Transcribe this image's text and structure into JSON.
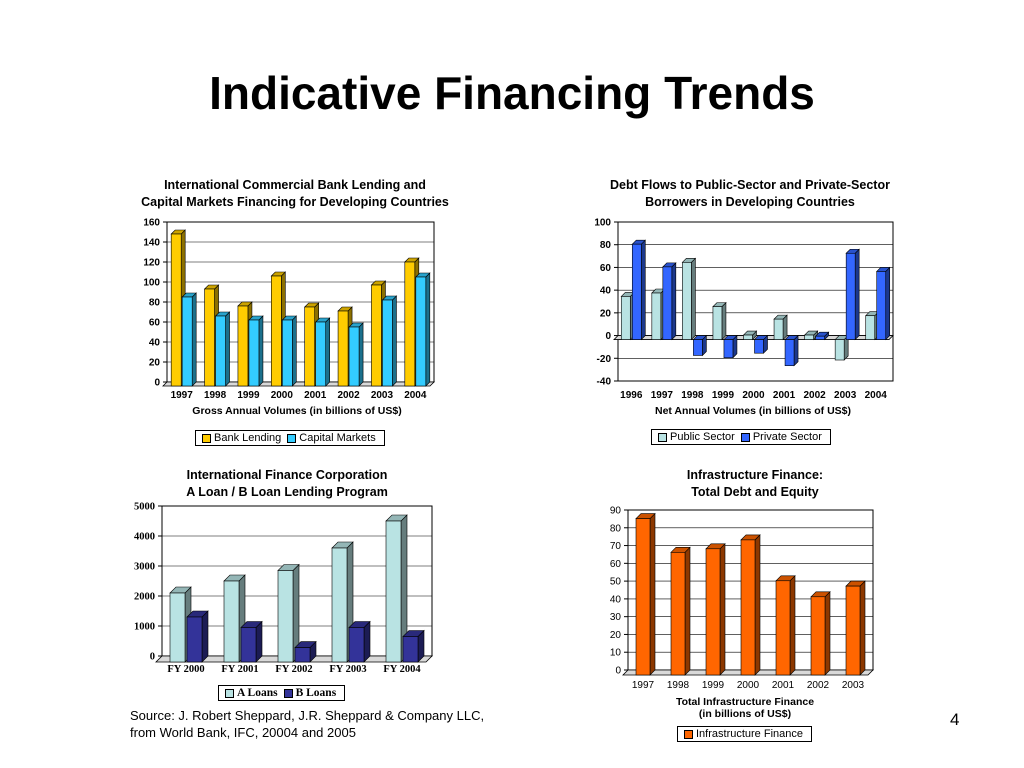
{
  "slide": {
    "title": "Indicative Financing Trends",
    "source": "Source: J. Robert Sheppard, J.R. Sheppard & Company LLC,\nfrom World Bank, IFC, 20004 and 2005",
    "page_number": "4"
  },
  "chart_data": [
    {
      "type": "bar",
      "title": "International Commercial Bank Lending and\nCapital Markets Financing for Developing Countries",
      "xlabel": "Gross Annual Volumes (in billions of US$)",
      "ylabel": "",
      "categories": [
        "1997",
        "1998",
        "1999",
        "2000",
        "2001",
        "2002",
        "2003",
        "2004"
      ],
      "series": [
        {
          "name": "Bank Lending",
          "color": "#FFCC00",
          "values": [
            152,
            97,
            80,
            110,
            79,
            75,
            101,
            124
          ]
        },
        {
          "name": "Capital Markets",
          "color": "#33CCFF",
          "values": [
            89,
            70,
            66,
            66,
            64,
            59,
            86,
            109
          ]
        }
      ],
      "ylim": [
        0,
        160
      ],
      "yticks": [
        0,
        20,
        40,
        60,
        80,
        100,
        120,
        140,
        160
      ],
      "grid": true,
      "legend": "bottom"
    },
    {
      "type": "bar",
      "title": "Debt Flows to Public-Sector and Private-Sector\nBorrowers  in Developing Countries",
      "xlabel": "Net Annual Volumes (in billions of US$)",
      "ylabel": "",
      "categories": [
        "1996",
        "1997",
        "1998",
        "1999",
        "2000",
        "2001",
        "2002",
        "2003",
        "2004"
      ],
      "series": [
        {
          "name": "Public Sector",
          "color": "#B9E3E3",
          "values": [
            38,
            41,
            68,
            29,
            4,
            18,
            4,
            -18,
            21
          ]
        },
        {
          "name": "Private Sector",
          "color": "#3366FF",
          "values": [
            84,
            64,
            -14,
            -16,
            -12,
            -23,
            3,
            76,
            60
          ]
        }
      ],
      "ylim": [
        -40,
        100
      ],
      "yticks": [
        -40,
        -20,
        0,
        20,
        40,
        60,
        80,
        100
      ],
      "grid": true,
      "legend": "bottom"
    },
    {
      "type": "bar",
      "title": "International Finance Corporation\nA Loan / B Loan Lending Program",
      "xlabel": "",
      "ylabel": "",
      "categories": [
        "FY 2000",
        "FY 2001",
        "FY 2002",
        "FY 2003",
        "FY 2004"
      ],
      "series": [
        {
          "name": "A Loans",
          "color": "#B9E3E3",
          "values": [
            2300,
            2700,
            3050,
            3800,
            4700
          ]
        },
        {
          "name": "B Loans",
          "color": "#333399",
          "values": [
            1500,
            1150,
            480,
            1150,
            850
          ]
        }
      ],
      "ylim": [
        0,
        5000
      ],
      "yticks": [
        0,
        1000,
        2000,
        3000,
        4000,
        5000
      ],
      "grid": true,
      "legend": "bottom"
    },
    {
      "type": "bar",
      "title": "Infrastructure Finance:\nTotal Debt and Equity",
      "xlabel": "Total Infrastructure Finance\n(in billions of US$)",
      "ylabel": "",
      "categories": [
        "1997",
        "1998",
        "1999",
        "2000",
        "2001",
        "2002",
        "2003"
      ],
      "series": [
        {
          "name": "Infrastructure Finance",
          "color": "#FF6600",
          "values": [
            88,
            69,
            71,
            76,
            53,
            44,
            50
          ]
        }
      ],
      "ylim": [
        0,
        90
      ],
      "yticks": [
        0,
        10,
        20,
        30,
        40,
        50,
        60,
        70,
        80,
        90
      ],
      "grid": true,
      "legend": "bottom"
    }
  ]
}
